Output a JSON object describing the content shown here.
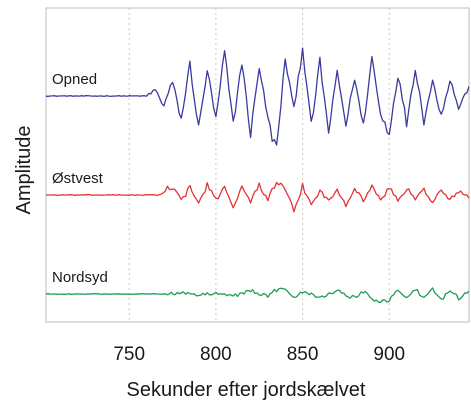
{
  "chart_data": {
    "type": "line",
    "xlabel": "Sekunder efter jordskælvet",
    "ylabel": "Amplitude",
    "xlim": [
      702,
      946
    ],
    "xticks": [
      750,
      800,
      850,
      900
    ],
    "tick_labels": [
      "750",
      "800",
      "850",
      "900"
    ],
    "grid": "vertical dotted",
    "y_axis_units": "arbitrary (stacked traces, no y tick labels)",
    "series": [
      {
        "name": "Opned",
        "color": "#3b3b9e",
        "baseline": 0,
        "x": [
          702,
          760,
          765,
          770,
          775,
          780,
          785,
          790,
          795,
          800,
          805,
          810,
          815,
          820,
          825,
          830,
          835,
          840,
          845,
          850,
          855,
          860,
          865,
          870,
          875,
          880,
          885,
          890,
          895,
          900,
          905,
          910,
          915,
          920,
          925,
          930,
          935,
          940,
          946
        ],
        "y": [
          0,
          0,
          0.5,
          -0.8,
          1.2,
          -2.0,
          2.6,
          -2.8,
          2.2,
          -2.0,
          3.6,
          -2.4,
          3.0,
          -3.2,
          2.6,
          -2.0,
          -4.6,
          3.2,
          -1.2,
          4.2,
          -2.6,
          2.8,
          -3.0,
          2.0,
          -2.4,
          1.6,
          -2.6,
          3.2,
          -1.6,
          -3.0,
          1.8,
          -2.2,
          2.4,
          -2.0,
          1.2,
          -1.6,
          1.4,
          -1.0,
          0.8
        ]
      },
      {
        "name": "Østvest",
        "color": "#e23434",
        "baseline": 0,
        "x": [
          702,
          768,
          772,
          776,
          780,
          785,
          790,
          795,
          800,
          805,
          810,
          815,
          820,
          825,
          830,
          835,
          840,
          845,
          850,
          855,
          860,
          865,
          870,
          875,
          880,
          885,
          890,
          895,
          900,
          905,
          910,
          915,
          920,
          925,
          930,
          935,
          940,
          946
        ],
        "y": [
          0,
          0,
          0.6,
          0.8,
          -0.6,
          0.7,
          -0.8,
          0.9,
          -0.5,
          0.8,
          -1.0,
          0.6,
          -0.5,
          0.9,
          -0.4,
          1.2,
          0.5,
          -1.6,
          0.8,
          -0.9,
          0.4,
          -0.6,
          0.5,
          -0.8,
          0.6,
          -0.5,
          0.9,
          -0.6,
          0.7,
          -0.5,
          0.6,
          -0.4,
          0.5,
          -0.6,
          0.4,
          -0.5,
          0.4,
          -0.3
        ]
      },
      {
        "name": "Nordsyd",
        "color": "#1f9c5a",
        "baseline": 0,
        "x": [
          702,
          772,
          780,
          790,
          800,
          810,
          820,
          830,
          835,
          840,
          845,
          850,
          860,
          870,
          880,
          885,
          890,
          895,
          900,
          905,
          910,
          915,
          920,
          925,
          930,
          935,
          940,
          946
        ],
        "y": [
          0,
          0,
          0.2,
          -0.2,
          0.2,
          -0.2,
          0.3,
          -0.2,
          0.4,
          0.6,
          -0.3,
          0.3,
          -0.3,
          0.3,
          -0.4,
          0.3,
          -0.5,
          -0.6,
          -0.7,
          0.5,
          -0.4,
          0.5,
          -0.5,
          0.4,
          -0.6,
          0.5,
          -0.4,
          0.3
        ]
      }
    ]
  }
}
